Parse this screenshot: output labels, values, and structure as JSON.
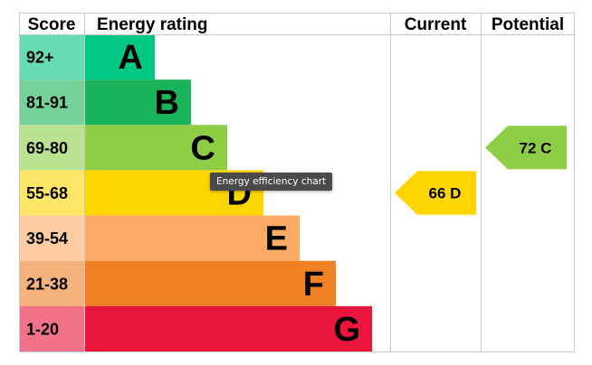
{
  "chart_data": {
    "type": "bar",
    "headers": {
      "score": "Score",
      "rating": "Energy rating",
      "current": "Current",
      "potential": "Potential"
    },
    "bands": [
      {
        "letter": "A",
        "score": "92+",
        "color": "#00c781",
        "score_color": "#66dcb3"
      },
      {
        "letter": "B",
        "score": "81-91",
        "color": "#19b459",
        "score_color": "#75d29b"
      },
      {
        "letter": "C",
        "score": "69-80",
        "color": "#8dce46",
        "score_color": "#bbe290"
      },
      {
        "letter": "D",
        "score": "55-68",
        "color": "#ffd500",
        "score_color": "#ffe666"
      },
      {
        "letter": "E",
        "score": "39-54",
        "color": "#fcaa65",
        "score_color": "#fdcca3"
      },
      {
        "letter": "F",
        "score": "21-38",
        "color": "#ef8023",
        "score_color": "#f5b37b"
      },
      {
        "letter": "G",
        "score": "1-20",
        "color": "#e9153b",
        "score_color": "#f27389"
      }
    ],
    "current": {
      "value": 66,
      "letter": "D",
      "label": "66  D",
      "color": "#ffd500"
    },
    "potential": {
      "value": 72,
      "letter": "C",
      "label": "72  C",
      "color": "#8dce46"
    }
  },
  "tooltip": {
    "text": "Energy efficiency chart"
  }
}
